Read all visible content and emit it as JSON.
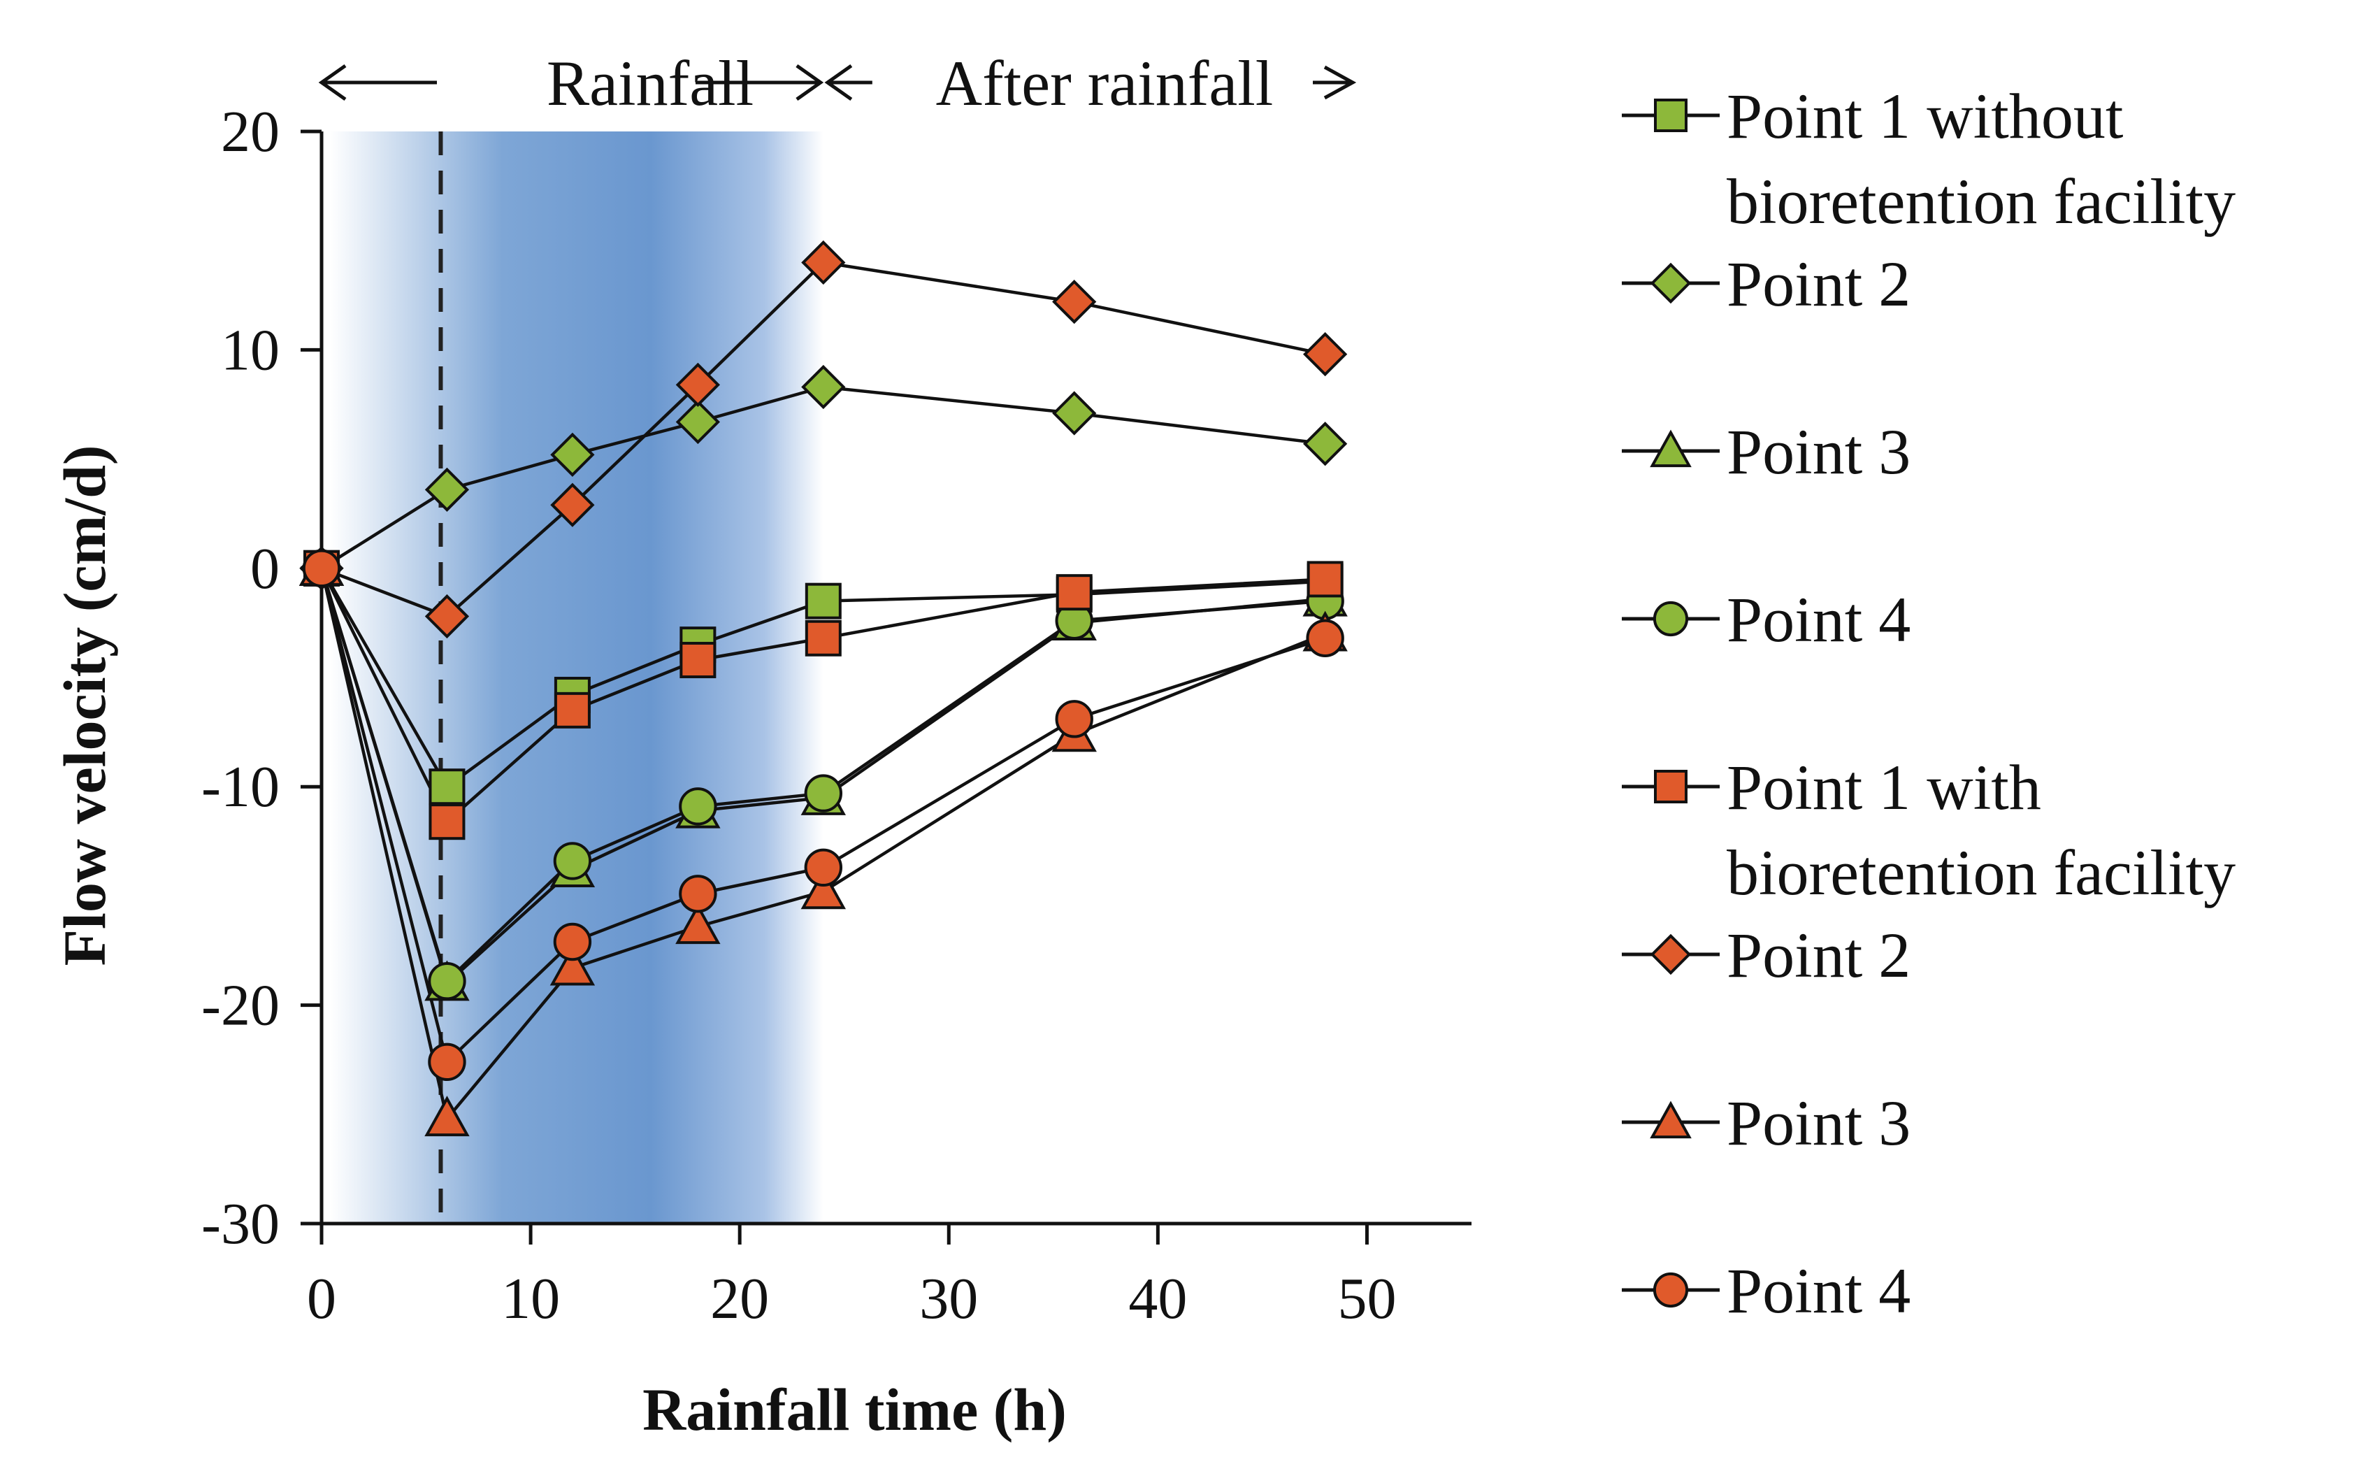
{
  "chart_data": {
    "type": "line",
    "xlabel": "Rainfall time (h)",
    "ylabel": "Flow velocity (cm/d)",
    "xlim": [
      0,
      55
    ],
    "ylim": [
      -30,
      20
    ],
    "xticks": [
      "0",
      "10",
      "20",
      "30",
      "40",
      "50"
    ],
    "yticks": [
      "20",
      "10",
      "0",
      "-10",
      "-20",
      "-30"
    ],
    "phases": [
      {
        "label": "Rainfall",
        "start": 0,
        "end": 24
      },
      {
        "label": "After rainfall",
        "start": 24,
        "end": 50
      }
    ],
    "dashed_marker_x": 5.7,
    "x": [
      0,
      6,
      12,
      18,
      24,
      36,
      48
    ],
    "series": [
      {
        "name": "Point 1 without bioretention facility",
        "group": "without",
        "marker": "square",
        "color": "#8db83a",
        "values": [
          0,
          -10.0,
          -5.8,
          -3.5,
          -1.5,
          -1.2,
          -0.6
        ]
      },
      {
        "name": "Point 2",
        "group": "without",
        "marker": "diamond",
        "color": "#8db83a",
        "values": [
          0,
          3.6,
          5.2,
          6.7,
          8.3,
          7.1,
          5.7
        ]
      },
      {
        "name": "Point 3",
        "group": "without",
        "marker": "triangle",
        "color": "#8db83a",
        "values": [
          0,
          -19.0,
          -13.8,
          -11.1,
          -10.5,
          -2.5,
          -1.4
        ]
      },
      {
        "name": "Point 4",
        "group": "without",
        "marker": "circle",
        "color": "#8db83a",
        "values": [
          0,
          -18.9,
          -13.4,
          -10.9,
          -10.3,
          -2.4,
          -1.5
        ]
      },
      {
        "name": "Point 1 with bioretention facility",
        "group": "with",
        "marker": "square",
        "color": "#e05a2b",
        "values": [
          0,
          -11.6,
          -6.5,
          -4.2,
          -3.2,
          -1.1,
          -0.5
        ]
      },
      {
        "name": "Point 2",
        "group": "with",
        "marker": "diamond",
        "color": "#e05a2b",
        "values": [
          0,
          -2.2,
          2.9,
          8.4,
          14.0,
          12.2,
          9.8
        ]
      },
      {
        "name": "Point 3",
        "group": "with",
        "marker": "triangle",
        "color": "#e05a2b",
        "values": [
          0,
          -25.2,
          -18.3,
          -16.4,
          -14.8,
          -7.6,
          -3.0
        ]
      },
      {
        "name": "Point 4",
        "group": "with",
        "marker": "circle",
        "color": "#e05a2b",
        "values": [
          0,
          -22.6,
          -17.1,
          -14.9,
          -13.7,
          -6.9,
          -3.2
        ]
      }
    ]
  },
  "legend": [
    {
      "lines": [
        "Point 1 without",
        "bioretention facility"
      ],
      "marker": "square",
      "color": "#8db83a"
    },
    {
      "lines": [
        "Point 2"
      ],
      "marker": "diamond",
      "color": "#8db83a"
    },
    {
      "lines": [
        "Point 3"
      ],
      "marker": "triangle",
      "color": "#8db83a"
    },
    {
      "lines": [
        "Point 4"
      ],
      "marker": "circle",
      "color": "#8db83a"
    },
    {
      "lines": [
        "Point 1 with",
        "bioretention facility"
      ],
      "marker": "square",
      "color": "#e05a2b"
    },
    {
      "lines": [
        "Point 2"
      ],
      "marker": "diamond",
      "color": "#e05a2b"
    },
    {
      "lines": [
        "Point 3"
      ],
      "marker": "triangle",
      "color": "#e05a2b"
    },
    {
      "lines": [
        "Point 4"
      ],
      "marker": "circle",
      "color": "#e05a2b"
    }
  ]
}
